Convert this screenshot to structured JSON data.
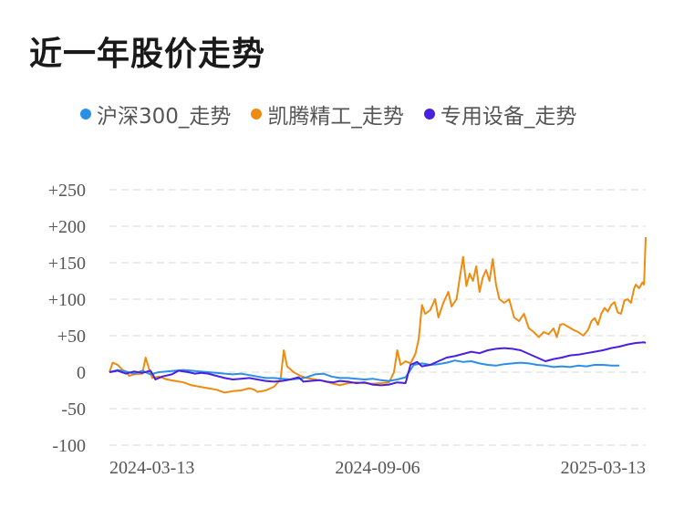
{
  "title": "近一年股价走势",
  "chart_data": {
    "type": "line",
    "title": "近一年股价走势",
    "ylim": [
      -100,
      250
    ],
    "yticks": [
      "+250",
      "+200",
      "+150",
      "+100",
      "+50",
      "0",
      "-50",
      "-100"
    ],
    "ytick_values": [
      250,
      200,
      150,
      100,
      50,
      0,
      -50,
      -100
    ],
    "xticks": [
      "2024-03-13",
      "2024-09-06",
      "2025-03-13"
    ],
    "grid": true,
    "legend_position": "top",
    "series": [
      {
        "name": "沪深300_走势",
        "color": "#2b8fe8",
        "points": [
          [
            0,
            0
          ],
          [
            5,
            3
          ],
          [
            10,
            1
          ],
          [
            15,
            -2
          ],
          [
            20,
            2
          ],
          [
            25,
            -3
          ],
          [
            30,
            0
          ],
          [
            35,
            1
          ],
          [
            40,
            2
          ],
          [
            45,
            3
          ],
          [
            50,
            2
          ],
          [
            55,
            1
          ],
          [
            60,
            0
          ],
          [
            65,
            -1
          ],
          [
            70,
            -2
          ],
          [
            75,
            -3
          ],
          [
            80,
            -2
          ],
          [
            85,
            -4
          ],
          [
            90,
            -6
          ],
          [
            95,
            -8
          ],
          [
            100,
            -8
          ],
          [
            105,
            -9
          ],
          [
            110,
            -10
          ],
          [
            115,
            -9
          ],
          [
            120,
            -7
          ],
          [
            125,
            -3
          ],
          [
            130,
            -2
          ],
          [
            135,
            -6
          ],
          [
            140,
            -8
          ],
          [
            145,
            -8
          ],
          [
            150,
            -9
          ],
          [
            155,
            -10
          ],
          [
            160,
            -9
          ],
          [
            165,
            -11
          ],
          [
            170,
            -12
          ],
          [
            175,
            -10
          ],
          [
            180,
            -7
          ],
          [
            185,
            10
          ],
          [
            190,
            12
          ],
          [
            195,
            10
          ],
          [
            200,
            11
          ],
          [
            205,
            13
          ],
          [
            210,
            16
          ],
          [
            215,
            14
          ],
          [
            220,
            15
          ],
          [
            225,
            12
          ],
          [
            230,
            10
          ],
          [
            235,
            9
          ],
          [
            240,
            11
          ],
          [
            245,
            12
          ],
          [
            250,
            13
          ],
          [
            255,
            12
          ],
          [
            260,
            10
          ],
          [
            265,
            9
          ],
          [
            270,
            7
          ],
          [
            275,
            8
          ],
          [
            280,
            7
          ],
          [
            285,
            9
          ],
          [
            290,
            8
          ],
          [
            295,
            10
          ],
          [
            300,
            10
          ],
          [
            305,
            9
          ],
          [
            310,
            9
          ]
        ]
      },
      {
        "name": "凯腾精工_走势",
        "color": "#ee8c11",
        "points": [
          [
            0,
            0
          ],
          [
            2,
            13
          ],
          [
            5,
            10
          ],
          [
            8,
            3
          ],
          [
            10,
            1
          ],
          [
            12,
            -5
          ],
          [
            15,
            -3
          ],
          [
            20,
            -2
          ],
          [
            22,
            20
          ],
          [
            24,
            5
          ],
          [
            26,
            -8
          ],
          [
            30,
            -6
          ],
          [
            35,
            -10
          ],
          [
            40,
            -12
          ],
          [
            45,
            -14
          ],
          [
            50,
            -18
          ],
          [
            55,
            -20
          ],
          [
            60,
            -22
          ],
          [
            65,
            -24
          ],
          [
            70,
            -28
          ],
          [
            75,
            -26
          ],
          [
            80,
            -25
          ],
          [
            85,
            -22
          ],
          [
            88,
            -24
          ],
          [
            90,
            -27
          ],
          [
            95,
            -25
          ],
          [
            100,
            -20
          ],
          [
            104,
            -10
          ],
          [
            106,
            30
          ],
          [
            108,
            8
          ],
          [
            112,
            0
          ],
          [
            116,
            -5
          ],
          [
            120,
            -8
          ],
          [
            125,
            -10
          ],
          [
            130,
            -12
          ],
          [
            135,
            -15
          ],
          [
            140,
            -18
          ],
          [
            145,
            -15
          ],
          [
            150,
            -14
          ],
          [
            155,
            -15
          ],
          [
            160,
            -16
          ],
          [
            165,
            -15
          ],
          [
            170,
            -14
          ],
          [
            173,
            0
          ],
          [
            175,
            30
          ],
          [
            177,
            10
          ],
          [
            180,
            15
          ],
          [
            183,
            12
          ],
          [
            186,
            25
          ],
          [
            188,
            45
          ],
          [
            190,
            92
          ],
          [
            192,
            80
          ],
          [
            195,
            85
          ],
          [
            198,
            100
          ],
          [
            200,
            75
          ],
          [
            203,
            95
          ],
          [
            206,
            110
          ],
          [
            208,
            90
          ],
          [
            211,
            100
          ],
          [
            213,
            130
          ],
          [
            215,
            158
          ],
          [
            217,
            118
          ],
          [
            219,
            135
          ],
          [
            221,
            125
          ],
          [
            223,
            145
          ],
          [
            225,
            110
          ],
          [
            227,
            130
          ],
          [
            229,
            140
          ],
          [
            231,
            125
          ],
          [
            233,
            155
          ],
          [
            235,
            120
          ],
          [
            237,
            100
          ],
          [
            240,
            95
          ],
          [
            243,
            100
          ],
          [
            246,
            75
          ],
          [
            249,
            70
          ],
          [
            252,
            80
          ],
          [
            255,
            60
          ],
          [
            258,
            55
          ],
          [
            261,
            48
          ],
          [
            264,
            55
          ],
          [
            267,
            52
          ],
          [
            270,
            60
          ],
          [
            272,
            48
          ],
          [
            274,
            65
          ],
          [
            276,
            66
          ],
          [
            279,
            62
          ],
          [
            282,
            58
          ],
          [
            285,
            55
          ],
          [
            288,
            50
          ],
          [
            291,
            58
          ],
          [
            293,
            70
          ],
          [
            295,
            74
          ],
          [
            297,
            65
          ],
          [
            299,
            80
          ],
          [
            301,
            88
          ],
          [
            303,
            83
          ],
          [
            305,
            92
          ],
          [
            307,
            96
          ],
          [
            309,
            82
          ],
          [
            311,
            80
          ],
          [
            313,
            98
          ],
          [
            315,
            100
          ],
          [
            317,
            95
          ],
          [
            319,
            115
          ],
          [
            320,
            120
          ],
          [
            322,
            115
          ],
          [
            324,
            123
          ],
          [
            325,
            120
          ],
          [
            326,
            185
          ]
        ]
      },
      {
        "name": "专用设备_走势",
        "color": "#4a20e0",
        "points": [
          [
            0,
            0
          ],
          [
            5,
            2
          ],
          [
            10,
            -2
          ],
          [
            15,
            1
          ],
          [
            20,
            -1
          ],
          [
            25,
            2
          ],
          [
            28,
            -10
          ],
          [
            32,
            -6
          ],
          [
            38,
            -3
          ],
          [
            42,
            2
          ],
          [
            48,
            0
          ],
          [
            52,
            -2
          ],
          [
            56,
            -1
          ],
          [
            60,
            -2
          ],
          [
            65,
            -5
          ],
          [
            70,
            -8
          ],
          [
            75,
            -10
          ],
          [
            80,
            -9
          ],
          [
            85,
            -8
          ],
          [
            90,
            -10
          ],
          [
            95,
            -12
          ],
          [
            100,
            -13
          ],
          [
            105,
            -12
          ],
          [
            110,
            -10
          ],
          [
            115,
            -7
          ],
          [
            118,
            -13
          ],
          [
            122,
            -12
          ],
          [
            128,
            -11
          ],
          [
            132,
            -13
          ],
          [
            136,
            -14
          ],
          [
            140,
            -12
          ],
          [
            145,
            -13
          ],
          [
            150,
            -15
          ],
          [
            155,
            -14
          ],
          [
            160,
            -17
          ],
          [
            165,
            -18
          ],
          [
            170,
            -17
          ],
          [
            175,
            -14
          ],
          [
            180,
            -15
          ],
          [
            183,
            10
          ],
          [
            187,
            14
          ],
          [
            190,
            8
          ],
          [
            195,
            10
          ],
          [
            200,
            15
          ],
          [
            205,
            20
          ],
          [
            210,
            22
          ],
          [
            215,
            25
          ],
          [
            220,
            28
          ],
          [
            225,
            26
          ],
          [
            230,
            30
          ],
          [
            235,
            32
          ],
          [
            240,
            33
          ],
          [
            245,
            32
          ],
          [
            250,
            30
          ],
          [
            255,
            25
          ],
          [
            260,
            20
          ],
          [
            265,
            15
          ],
          [
            270,
            18
          ],
          [
            275,
            20
          ],
          [
            280,
            23
          ],
          [
            285,
            24
          ],
          [
            290,
            26
          ],
          [
            295,
            28
          ],
          [
            300,
            30
          ],
          [
            305,
            33
          ],
          [
            310,
            35
          ],
          [
            315,
            38
          ],
          [
            320,
            40
          ],
          [
            325,
            41
          ],
          [
            326,
            40
          ]
        ]
      }
    ]
  }
}
